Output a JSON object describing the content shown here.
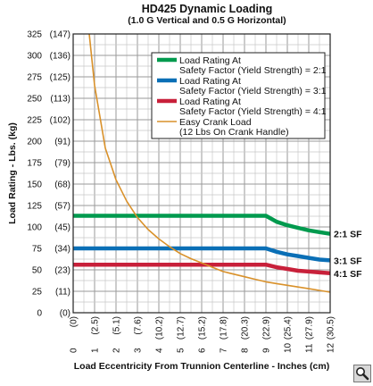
{
  "chart_data": {
    "type": "line",
    "title": "HD425 Dynamic Loading",
    "subtitle": "(1.0 G Vertical and 0.5 G Horizontal)",
    "xlabel": "Load Eccentricity From Trunnion Centerline - Inches (cm)",
    "ylabel": "Load Rating - Lbs. (kg)",
    "xlim": [
      0,
      12
    ],
    "ylim": [
      0,
      325
    ],
    "x_ticks": [
      {
        "value": 0,
        "label": "0",
        "sub": "(0)"
      },
      {
        "value": 1,
        "label": "1",
        "sub": "(2.5)"
      },
      {
        "value": 2,
        "label": "2",
        "sub": "(5.1)"
      },
      {
        "value": 3,
        "label": "3",
        "sub": "(7.6)"
      },
      {
        "value": 4,
        "label": "4",
        "sub": "(10.2)"
      },
      {
        "value": 5,
        "label": "5",
        "sub": "(12.7)"
      },
      {
        "value": 6,
        "label": "6",
        "sub": "(15.2)"
      },
      {
        "value": 7,
        "label": "7",
        "sub": "(17.8)"
      },
      {
        "value": 8,
        "label": "8",
        "sub": "(20.3)"
      },
      {
        "value": 9,
        "label": "9",
        "sub": "(22.9)"
      },
      {
        "value": 10,
        "label": "10",
        "sub": "(25.4)"
      },
      {
        "value": 11,
        "label": "11",
        "sub": "(27.9)"
      },
      {
        "value": 12,
        "label": "12",
        "sub": "(30.5)"
      }
    ],
    "y_ticks": [
      {
        "value": 0,
        "label": "0",
        "sub": "(0)"
      },
      {
        "value": 25,
        "label": "25",
        "sub": "(11)"
      },
      {
        "value": 50,
        "label": "50",
        "sub": "(23)"
      },
      {
        "value": 75,
        "label": "75",
        "sub": "(34)"
      },
      {
        "value": 100,
        "label": "100",
        "sub": "(45)"
      },
      {
        "value": 125,
        "label": "125",
        "sub": "(57)"
      },
      {
        "value": 150,
        "label": "150",
        "sub": "(68)"
      },
      {
        "value": 175,
        "label": "175",
        "sub": "(79)"
      },
      {
        "value": 200,
        "label": "200",
        "sub": "(91)"
      },
      {
        "value": 225,
        "label": "225",
        "sub": "(102)"
      },
      {
        "value": 250,
        "label": "250",
        "sub": "(113)"
      },
      {
        "value": 275,
        "label": "275",
        "sub": "(125)"
      },
      {
        "value": 300,
        "label": "300",
        "sub": "(136)"
      },
      {
        "value": 325,
        "label": "325",
        "sub": "(147)"
      }
    ],
    "grid": true,
    "legend_position": "top-right",
    "series": [
      {
        "name": "Load Rating At Safety Factor (Yield Strength) = 2:1",
        "legend_lines": [
          "Load Rating At",
          "Safety Factor (Yield Strength) = 2:1"
        ],
        "end_label": "2:1 SF",
        "color": "#009a4e",
        "x": [
          0,
          9,
          9.5,
          10,
          10.5,
          11,
          11.5,
          12
        ],
        "y": [
          113,
          113,
          106,
          102,
          99,
          96,
          94,
          92
        ]
      },
      {
        "name": "Load Rating At Safety Factor (Yield Strength) = 3:1",
        "legend_lines": [
          "Load Rating At",
          "Safety Factor (Yield Strength) = 3:1"
        ],
        "end_label": "3:1 SF",
        "color": "#0a6fb6",
        "x": [
          0,
          9,
          9.5,
          10,
          10.5,
          11,
          11.5,
          12
        ],
        "y": [
          75,
          75,
          71,
          68,
          66,
          64,
          62,
          61
        ]
      },
      {
        "name": "Load Rating At Safety Factor (Yield Strength) = 4:1",
        "legend_lines": [
          "Load Rating At",
          "Safety Factor (Yield Strength) = 4:1"
        ],
        "end_label": "4:1 SF",
        "color": "#c8203a",
        "x": [
          0,
          9,
          9.5,
          10,
          10.5,
          11,
          11.5,
          12
        ],
        "y": [
          56,
          56,
          53,
          51,
          49,
          48,
          47,
          46
        ]
      },
      {
        "name": "Easy Crank Load (12 Lbs On Crank Handle)",
        "legend_lines": [
          "Easy Crank Load",
          "(12 Lbs On Crank Handle)"
        ],
        "end_label": "",
        "color": "#d9912a",
        "x": [
          0.75,
          1,
          1.5,
          2,
          2.5,
          3,
          3.5,
          4,
          4.5,
          5,
          5.5,
          6,
          6.5,
          7,
          7.5,
          8,
          8.5,
          9,
          9.5,
          10,
          10.5,
          11,
          11.5,
          12
        ],
        "y": [
          325,
          265,
          192,
          155,
          130,
          111,
          97,
          86,
          77,
          69,
          63,
          58,
          53,
          48,
          45,
          42,
          39,
          36,
          34,
          32,
          30,
          28,
          26,
          24
        ]
      }
    ]
  },
  "zoom_icon": "magnifier-icon"
}
